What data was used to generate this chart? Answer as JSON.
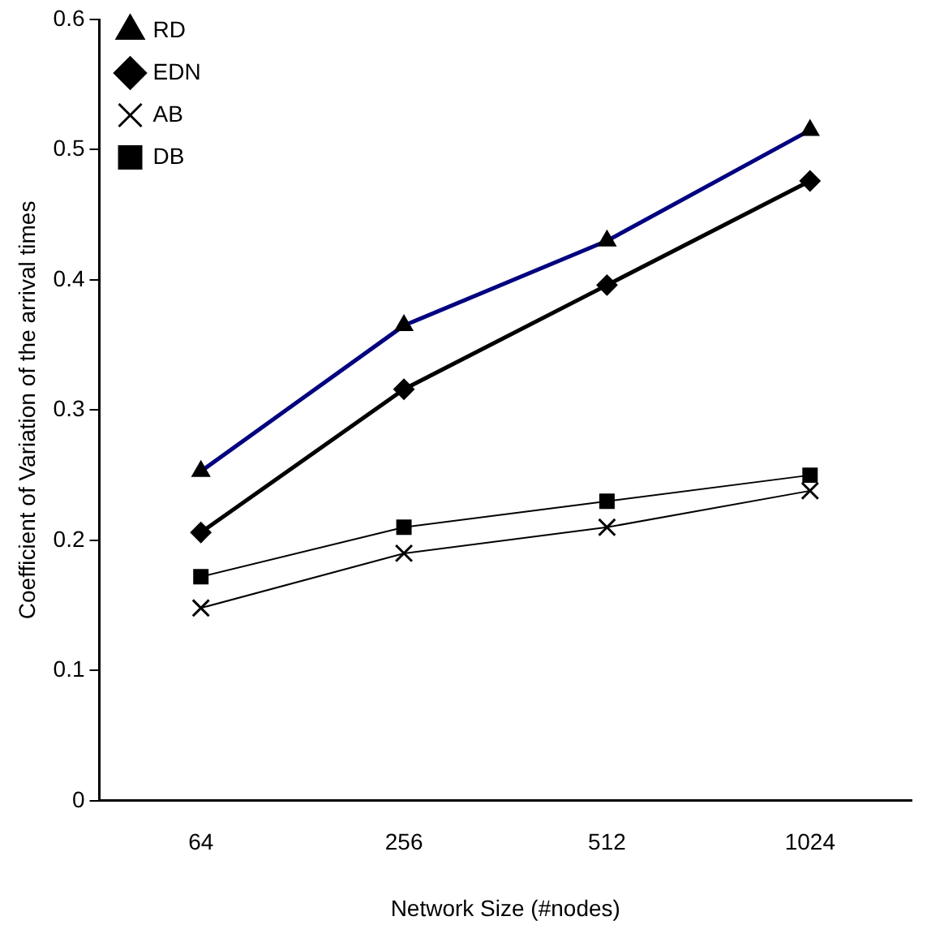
{
  "chart_data": {
    "type": "line",
    "xlabel": "Network Size (#nodes)",
    "ylabel": "Coefficient of Variation of the arrival times",
    "categories": [
      "64",
      "256",
      "512",
      "1024"
    ],
    "ylim": [
      0,
      0.6
    ],
    "yticks": [
      0,
      0.1,
      0.2,
      0.3,
      0.4,
      0.5,
      0.6
    ],
    "grid": false,
    "legend": "top left",
    "series": [
      {
        "name": "RD",
        "color": "#000080",
        "marker": "triangle",
        "values": [
          0.253,
          0.365,
          0.43,
          0.515
        ]
      },
      {
        "name": "EDN",
        "color": "#000000",
        "marker": "diamond",
        "values": [
          0.206,
          0.316,
          0.396,
          0.476
        ]
      },
      {
        "name": "AB",
        "color": "#000000",
        "marker": "cross",
        "values": [
          0.148,
          0.19,
          0.21,
          0.238
        ]
      },
      {
        "name": "DB",
        "color": "#000000",
        "marker": "square",
        "values": [
          0.172,
          0.21,
          0.23,
          0.25
        ]
      }
    ]
  }
}
